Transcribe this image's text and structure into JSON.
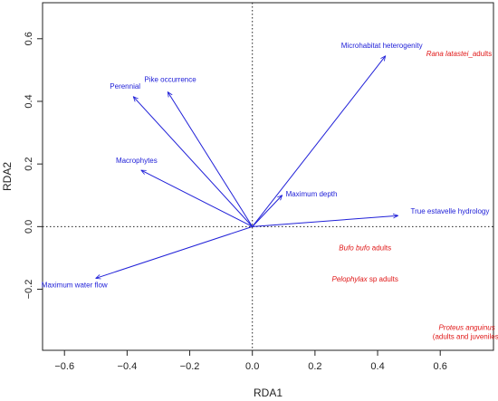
{
  "chart_data": {
    "type": "scatter",
    "title": "",
    "xlabel": "RDA1",
    "ylabel": "RDA2",
    "xlim": [
      -0.67,
      0.77
    ],
    "ylim": [
      -0.395,
      0.715
    ],
    "xticks": [
      -0.6,
      -0.4,
      -0.2,
      0.0,
      0.2,
      0.4,
      0.6
    ],
    "yticks": [
      -0.2,
      0.0,
      0.2,
      0.4,
      0.6
    ],
    "xtick_labels": [
      "−0.6",
      "−0.4",
      "−0.2",
      "0.0",
      "0.2",
      "0.4",
      "0.6"
    ],
    "ytick_labels": [
      "−0.2",
      "0.0",
      "0.2",
      "0.4",
      "0.6"
    ],
    "zero_lines": true,
    "arrow_color": "#2020d8",
    "species_color": "#e01818",
    "arrows": [
      {
        "name": "Microhabitat heterogenity",
        "x": 0.425,
        "y": 0.545
      },
      {
        "name": "Pike occurrence",
        "x": -0.27,
        "y": 0.43
      },
      {
        "name": "Perennial",
        "x": -0.38,
        "y": 0.415
      },
      {
        "name": "Macrophytes",
        "x": -0.355,
        "y": 0.18
      },
      {
        "name": "Maximum depth",
        "x": 0.095,
        "y": 0.1
      },
      {
        "name": "True estavelle hydrology",
        "x": 0.465,
        "y": 0.035
      },
      {
        "name": "Maximum water flow",
        "x": -0.5,
        "y": -0.165
      }
    ],
    "species": [
      {
        "italic": "Rana latastei",
        "rest": "_adults",
        "x": 0.66,
        "y": 0.545
      },
      {
        "italic": "Bufo bufo",
        "rest": " adults",
        "x": 0.36,
        "y": -0.075
      },
      {
        "italic": "Pelophylax",
        "rest": " sp adults",
        "x": 0.36,
        "y": -0.175
      },
      {
        "italic": "Proteus anguinus",
        "rest": "",
        "line2": "(adults and juveniles)",
        "x": 0.685,
        "y": -0.33
      }
    ]
  }
}
